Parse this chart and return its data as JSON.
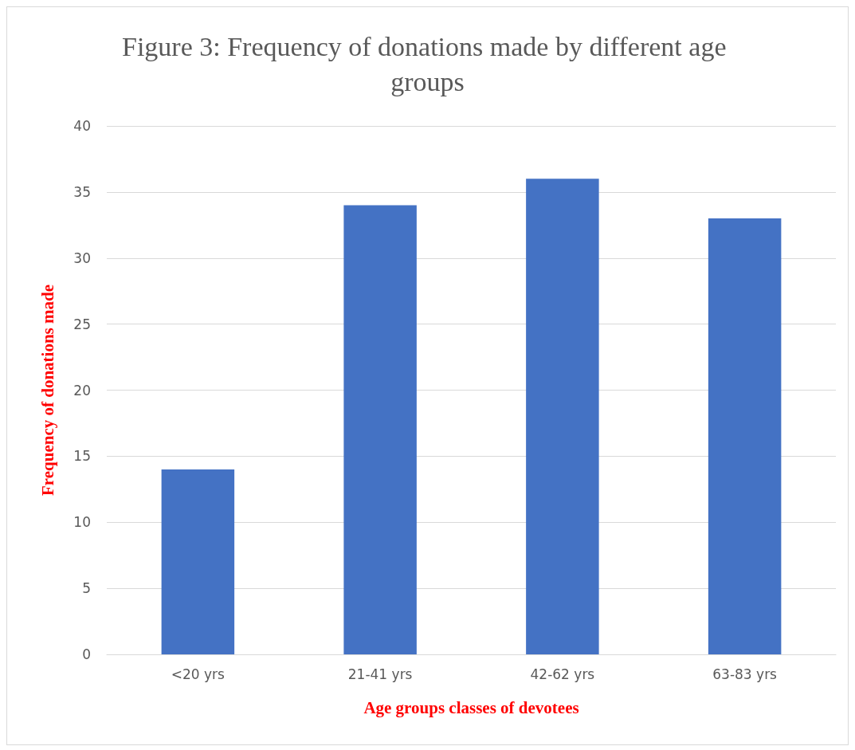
{
  "chart_data": {
    "type": "bar",
    "title": "Figure 3: Frequency of donations made by different age groups",
    "xlabel": "Age groups classes of devotees",
    "ylabel": "Frequency of donations made",
    "categories": [
      "<20 yrs",
      "21-41 yrs",
      "42-62 yrs",
      "63-83 yrs"
    ],
    "values": [
      14,
      34,
      36,
      33
    ],
    "color": "#4472c4",
    "ylim": [
      0,
      40
    ],
    "yticks": [
      0,
      5,
      10,
      15,
      20,
      25,
      30,
      35,
      40
    ],
    "grid": "y"
  }
}
